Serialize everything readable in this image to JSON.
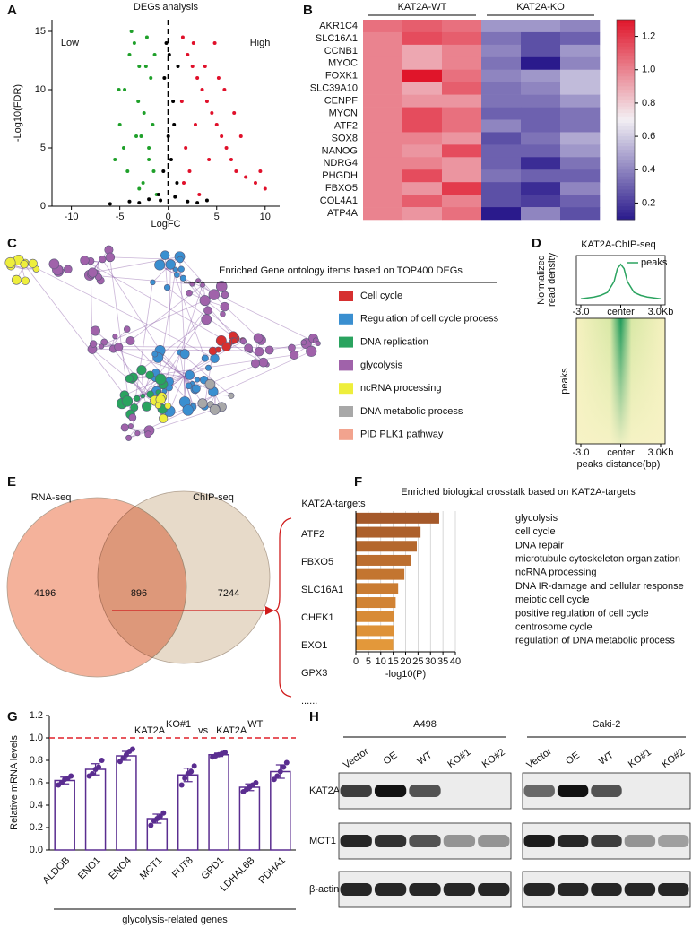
{
  "panel_labels": [
    "A",
    "B",
    "C",
    "D",
    "E",
    "F",
    "G",
    "H"
  ],
  "chart_data": [
    {
      "type": "scatter",
      "title": "DEGs analysis",
      "xlabel": "LogFC",
      "ylabel": "-Log10(FDR)",
      "xlim": [
        -12,
        11.5
      ],
      "ylim": [
        0,
        16
      ],
      "xticks": [
        -10,
        -5,
        0,
        5,
        10
      ],
      "yticks": [
        0,
        5,
        10,
        15
      ],
      "vline": 0,
      "series": [
        {
          "name": "Low",
          "color": "#1fa02a",
          "x": [
            -1.2,
            -1.5,
            -2,
            -2.5,
            -3,
            -3.5,
            -4,
            -4.5,
            -5,
            -5.5,
            -2.2,
            -3.1,
            -1.8,
            -2.8,
            -4.2,
            -3.8,
            -1.4,
            -2.6,
            -5.1,
            -3.3,
            -1.6,
            -2.3,
            -4.6,
            -3.0,
            -2.0
          ],
          "values": [
            1,
            3,
            5,
            8,
            12,
            14,
            13,
            10,
            7,
            4,
            14.5,
            9,
            11,
            6,
            3,
            15,
            13,
            2,
            10,
            6,
            7,
            12,
            5,
            1.5,
            4
          ]
        },
        {
          "name": "High",
          "color": "#e0102a",
          "x": [
            1.5,
            2,
            2.5,
            3,
            3.5,
            4,
            4.5,
            5,
            5.5,
            6,
            6.5,
            7,
            8,
            9,
            10,
            1.8,
            2.8,
            3.8,
            4.8,
            5.8,
            6.8,
            7.5,
            1.6,
            2.2,
            3.2,
            4.2,
            5.2,
            9.5,
            1.4,
            2.6
          ],
          "values": [
            14.5,
            13,
            12,
            11,
            10,
            9,
            8,
            7,
            6,
            5,
            4,
            3,
            2.5,
            2,
            1.5,
            5,
            7,
            12,
            14,
            10,
            8,
            6,
            2,
            3,
            1,
            4,
            11,
            3,
            9,
            14
          ]
        },
        {
          "color": "#000000",
          "x": [
            -1,
            -0.5,
            0,
            0.5,
            1,
            -0.8,
            0.3,
            0.9,
            -0.2,
            0.6,
            -3,
            -4,
            -6,
            3,
            4,
            -2,
            2,
            -0.4,
            0.1,
            0.7
          ],
          "values": [
            1,
            3,
            6,
            9,
            12,
            0.5,
            4,
            2,
            14,
            7,
            0.3,
            0.4,
            0.2,
            0.3,
            0.5,
            0.6,
            0.4,
            11,
            13,
            0.8
          ]
        }
      ]
    },
    {
      "type": "heatmap",
      "column_groups": [
        "KAT2A-WT",
        "KAT2A-KO"
      ],
      "rows": [
        "AKR1C4",
        "SLC16A1",
        "CCNB1",
        "MYOC",
        "FOXK1",
        "SLC39A10",
        "CENPF",
        "MYCN",
        "ATF2",
        "SOX8",
        "NANOG",
        "NDRG4",
        "PHGDH",
        "FBXO5",
        "COL4A1",
        "ATP4A"
      ],
      "values": [
        [
          1.05,
          1.1,
          1.05,
          0.45,
          0.45,
          0.4
        ],
        [
          1.0,
          1.15,
          1.1,
          0.35,
          0.25,
          0.3
        ],
        [
          1.0,
          0.9,
          1.0,
          0.4,
          0.25,
          0.45
        ],
        [
          1.0,
          0.9,
          1.0,
          0.35,
          0.1,
          0.4
        ],
        [
          1.0,
          1.3,
          1.05,
          0.4,
          0.45,
          0.55
        ],
        [
          1.0,
          0.9,
          1.1,
          0.35,
          0.4,
          0.55
        ],
        [
          1.0,
          0.95,
          0.95,
          0.35,
          0.35,
          0.45
        ],
        [
          1.0,
          1.15,
          1.05,
          0.3,
          0.3,
          0.35
        ],
        [
          1.0,
          1.15,
          1.05,
          0.4,
          0.3,
          0.35
        ],
        [
          1.0,
          1.0,
          0.95,
          0.25,
          0.35,
          0.5
        ],
        [
          1.0,
          0.95,
          1.15,
          0.3,
          0.3,
          0.45
        ],
        [
          1.0,
          1.0,
          0.95,
          0.3,
          0.15,
          0.35
        ],
        [
          1.0,
          1.15,
          0.95,
          0.35,
          0.3,
          0.3
        ],
        [
          1.0,
          0.95,
          1.2,
          0.25,
          0.15,
          0.4
        ],
        [
          1.0,
          1.1,
          1.0,
          0.25,
          0.2,
          0.3
        ],
        [
          1.0,
          0.95,
          1.05,
          0.1,
          0.4,
          0.25
        ]
      ],
      "clim": [
        0.1,
        1.3
      ],
      "colormap": [
        "#2a1a8c",
        "#f3f0f4",
        "#e0152a"
      ],
      "cticks": [
        0.2,
        0.4,
        0.6,
        0.8,
        {
          "value": 1,
          "label": "1.0"
        },
        1.2
      ]
    },
    {
      "type": "network",
      "title": "Enriched Gene ontology items based on TOP400 DEGs",
      "legend": [
        {
          "name": "Cell cycle",
          "color": "#d62f2f"
        },
        {
          "name": "Regulation of cell cycle process",
          "color": "#3a8fd0"
        },
        {
          "name": "DNA replication",
          "color": "#2aa35f"
        },
        {
          "name": "glycolysis",
          "color": "#a062aa"
        },
        {
          "name": "ncRNA processing",
          "color": "#eeee3c"
        },
        {
          "name": "DNA metabolic process",
          "color": "#a8a8a8"
        },
        {
          "name": "PID PLK1 pathway",
          "color": "#f2a38e"
        }
      ]
    },
    {
      "type": "line",
      "title": "KAT2A-ChIP-seq",
      "ylabel": [
        "Normalized",
        "read density"
      ],
      "x": [
        -3,
        -2.5,
        -2,
        -1.5,
        -1,
        -0.5,
        -0.25,
        0,
        0.25,
        0.5,
        1,
        1.5,
        2,
        2.5,
        3
      ],
      "xlim": [
        -3,
        3
      ],
      "xticks": [
        {
          "value": -3,
          "label": "-3.0"
        },
        {
          "value": 0,
          "label": "center"
        },
        {
          "value": 3,
          "label": "3.0Kb"
        }
      ],
      "ylim": [
        0,
        1
      ],
      "series": [
        {
          "name": "peaks",
          "color": "#2aa35f",
          "values": [
            0.1,
            0.12,
            0.14,
            0.18,
            0.25,
            0.5,
            0.8,
            0.9,
            0.8,
            0.5,
            0.25,
            0.18,
            0.14,
            0.12,
            0.1
          ]
        }
      ],
      "heatmap_ylabel": "peaks",
      "heatmap_xlabel": "peaks distance(bp)"
    },
    {
      "type": "venn",
      "sets": [
        {
          "name": "RNA-seq",
          "color": "#f2a58a",
          "value": 4196
        },
        {
          "name": "ChIP-seq",
          "color": "#e3d4bf",
          "value": 7244
        }
      ],
      "intersection": 896,
      "targets_title": "KAT2A-targets",
      "targets": [
        "ATF2",
        "FBXO5",
        "SLC16A1",
        "CHEK1",
        "EXO1",
        "GPX3",
        "......"
      ]
    },
    {
      "type": "bar",
      "orientation": "horizontal",
      "title": "Enriched biological crosstalk based on KAT2A-targets",
      "xlabel": "-log10(P)",
      "categories": [
        "glycolysis",
        "cell cycle",
        "DNA repair",
        "microtubule cytoskeleton organization",
        "ncRNA processing",
        "DNA IR-damage and cellular response",
        "meiotic cell cycle",
        "positive regulation of cell cycle",
        "centrosome cycle",
        "regulation of DNA metabolic process"
      ],
      "values": [
        33.5,
        26,
        24.5,
        22,
        19.5,
        17,
        16,
        15.5,
        15.2,
        15
      ],
      "colors": [
        "#a5592a",
        "#ad602b",
        "#b4672d",
        "#bc6e2f",
        "#c37530",
        "#ca7c32",
        "#d18334",
        "#d88b36",
        "#de9238",
        "#e3983a"
      ],
      "xlim": [
        0,
        40
      ],
      "xticks": [
        0,
        5,
        10,
        15,
        20,
        25,
        30,
        35,
        40
      ],
      "grid": true
    },
    {
      "type": "bar",
      "orientation": "vertical",
      "title": [
        {
          "text": "KAT2A",
          "sup": "KO#1"
        },
        {
          "text": "vs"
        },
        {
          "text": "KAT2A",
          "sup": "WT"
        }
      ],
      "ylabel": "Relative mRNA levels",
      "xlabel": "glycolysis-related genes",
      "categories": [
        "ALDOB",
        "ENO1",
        "ENO4",
        "MCT1",
        "FUT8",
        "GPD1",
        "LDHAL6B",
        "PDHA1"
      ],
      "values": [
        0.62,
        0.72,
        0.84,
        0.28,
        0.67,
        0.85,
        0.56,
        0.7
      ],
      "errors": [
        0.03,
        0.05,
        0.04,
        0.04,
        0.06,
        0.015,
        0.03,
        0.06
      ],
      "points": [
        [
          0.58,
          0.6,
          0.63,
          0.64,
          0.66
        ],
        [
          0.66,
          0.68,
          0.72,
          0.74,
          0.8
        ],
        [
          0.79,
          0.82,
          0.85,
          0.88,
          0.9
        ],
        [
          0.22,
          0.26,
          0.28,
          0.3,
          0.33
        ],
        [
          0.58,
          0.64,
          0.68,
          0.7,
          0.75
        ],
        [
          0.83,
          0.84,
          0.85,
          0.86,
          0.87
        ],
        [
          0.52,
          0.54,
          0.56,
          0.58,
          0.6
        ],
        [
          0.63,
          0.66,
          0.7,
          0.74,
          0.78
        ]
      ],
      "color": "#5a2d90",
      "reference_line": 1,
      "reference_color": "#e0202a",
      "ylim": [
        0,
        1.2
      ],
      "yticks": [
        {
          "value": 0,
          "label": "0.0"
        },
        0.2,
        0.4,
        0.6,
        0.8,
        {
          "value": 1,
          "label": "1.0"
        },
        1.2
      ]
    },
    {
      "type": "blot",
      "rows": [
        "KAT2A",
        "MCT1",
        "β-actin"
      ],
      "groups": [
        {
          "name": "A498",
          "lanes": [
            "Vector",
            "OE",
            "WT",
            "KO#1",
            "KO#2"
          ],
          "intensity": [
            [
              0.8,
              1,
              0.7,
              0,
              0
            ],
            [
              0.9,
              0.85,
              0.7,
              0.4,
              0.4
            ],
            [
              0.9,
              0.9,
              0.9,
              0.9,
              0.9
            ]
          ]
        },
        {
          "name": "Caki-2",
          "lanes": [
            "Vector",
            "OE",
            "WT",
            "KO#1",
            "KO#2"
          ],
          "intensity": [
            [
              0.6,
              1,
              0.7,
              0,
              0
            ],
            [
              0.95,
              0.9,
              0.8,
              0.4,
              0.35
            ],
            [
              0.9,
              0.9,
              0.9,
              0.9,
              0.9
            ]
          ]
        }
      ]
    }
  ]
}
